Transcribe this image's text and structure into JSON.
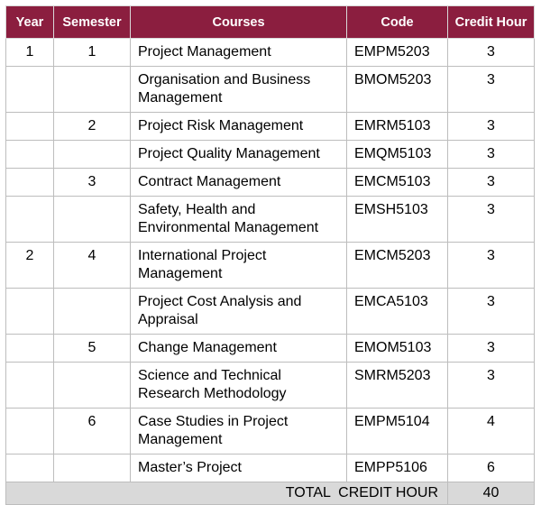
{
  "table": {
    "headers": {
      "year": "Year",
      "semester": "Semester",
      "courses": "Courses",
      "code": "Code",
      "credit_hour": "Credit Hour"
    },
    "rows": [
      {
        "year": "1",
        "semester": "1",
        "course": "Project Management",
        "code": "EMPM5203",
        "credit": "3"
      },
      {
        "year": "",
        "semester": "",
        "course": "Organisation and Business Management",
        "code": "BMOM5203",
        "credit": "3"
      },
      {
        "year": "",
        "semester": "2",
        "course": "Project Risk Management",
        "code": "EMRM5103",
        "credit": "3"
      },
      {
        "year": "",
        "semester": "",
        "course": "Project Quality Management",
        "code": "EMQM5103",
        "credit": "3"
      },
      {
        "year": "",
        "semester": "3",
        "course": "Contract Management",
        "code": "EMCM5103",
        "credit": "3"
      },
      {
        "year": "",
        "semester": "",
        "course": "Safety, Health and Environmental Management",
        "code": "EMSH5103",
        "credit": "3"
      },
      {
        "year": "2",
        "semester": "4",
        "course": "International Project Management",
        "code": "EMCM5203",
        "credit": "3"
      },
      {
        "year": "",
        "semester": "",
        "course": "Project Cost Analysis and Appraisal",
        "code": "EMCA5103",
        "credit": "3"
      },
      {
        "year": "",
        "semester": "5",
        "course": "Change Management",
        "code": "EMOM5103",
        "credit": "3"
      },
      {
        "year": "",
        "semester": "",
        "course": "Science and Technical Research Methodology",
        "code": "SMRM5203",
        "credit": "3"
      },
      {
        "year": "",
        "semester": "6",
        "course": "Case Studies in Project Management",
        "code": "EMPM5104",
        "credit": "4"
      },
      {
        "year": "",
        "semester": "",
        "course": "Master’s Project",
        "code": "EMPP5106",
        "credit": "6"
      }
    ],
    "total": {
      "label": "TOTAL  CREDIT HOUR",
      "value": "40"
    }
  },
  "colors": {
    "header_bg": "#8b1e3f",
    "header_text": "#ffffff",
    "total_bg": "#d9d9d9",
    "border": "#bdbdbd"
  }
}
